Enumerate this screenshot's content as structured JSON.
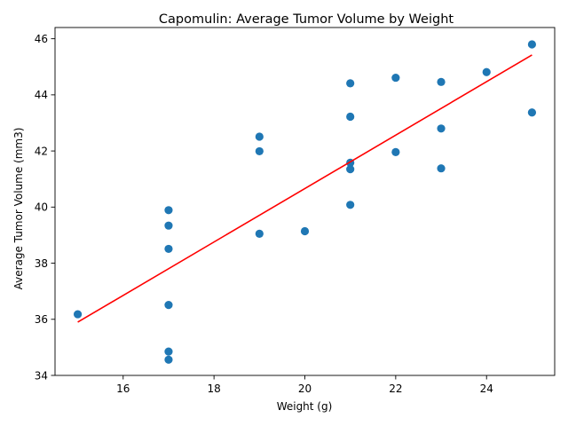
{
  "chart_data": {
    "type": "scatter",
    "title": "Capomulin: Average Tumor Volume by Weight",
    "xlabel": "Weight (g)",
    "ylabel": "Average Tumor Volume (mm3)",
    "xlim": [
      14.5,
      25.5
    ],
    "ylim": [
      34,
      46.4
    ],
    "xticks": [
      16,
      18,
      20,
      22,
      24
    ],
    "yticks": [
      34,
      36,
      38,
      40,
      42,
      44,
      46
    ],
    "grid": false,
    "legend": "none",
    "point_color": "#1f77b4",
    "line_color": "#ff0000",
    "points": [
      {
        "x": 15,
        "y": 36.18
      },
      {
        "x": 17,
        "y": 39.89
      },
      {
        "x": 17,
        "y": 39.34
      },
      {
        "x": 17,
        "y": 38.51
      },
      {
        "x": 17,
        "y": 36.51
      },
      {
        "x": 17,
        "y": 34.85
      },
      {
        "x": 17,
        "y": 34.56
      },
      {
        "x": 19,
        "y": 42.51
      },
      {
        "x": 19,
        "y": 41.99
      },
      {
        "x": 19,
        "y": 39.05
      },
      {
        "x": 20,
        "y": 39.14
      },
      {
        "x": 21,
        "y": 44.41
      },
      {
        "x": 21,
        "y": 43.22
      },
      {
        "x": 21,
        "y": 41.58
      },
      {
        "x": 21,
        "y": 41.35
      },
      {
        "x": 21,
        "y": 40.08
      },
      {
        "x": 22,
        "y": 44.61
      },
      {
        "x": 22,
        "y": 41.96
      },
      {
        "x": 23,
        "y": 44.46
      },
      {
        "x": 23,
        "y": 42.8
      },
      {
        "x": 23,
        "y": 41.38
      },
      {
        "x": 24,
        "y": 44.81
      },
      {
        "x": 25,
        "y": 45.8
      },
      {
        "x": 25,
        "y": 43.37
      }
    ],
    "regression": {
      "x": [
        15,
        25
      ],
      "y": [
        35.9,
        45.42
      ]
    }
  }
}
